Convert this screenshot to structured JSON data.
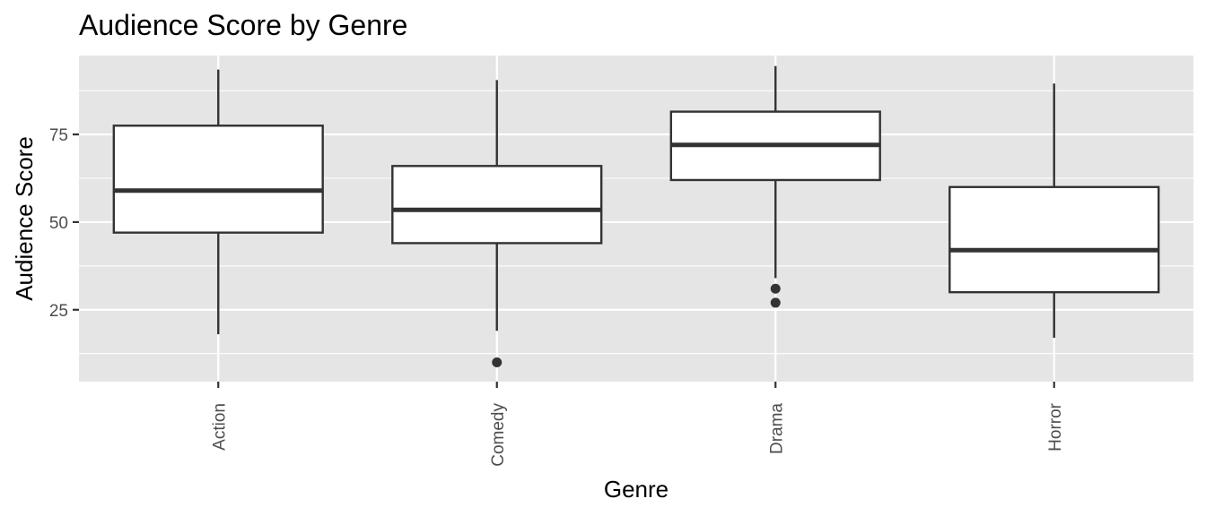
{
  "chart_data": {
    "type": "boxplot",
    "title": "Audience Score by Genre",
    "xlabel": "Genre",
    "ylabel": "Audience Score",
    "categories": [
      "Action",
      "Comedy",
      "Drama",
      "Horror"
    ],
    "boxes": [
      {
        "category": "Action",
        "whisker_low": 18,
        "q1": 47,
        "median": 59,
        "q3": 77.5,
        "whisker_high": 93.5,
        "outliers": []
      },
      {
        "category": "Comedy",
        "whisker_low": 19,
        "q1": 44,
        "median": 53.5,
        "q3": 66,
        "whisker_high": 90.5,
        "outliers": [
          10
        ]
      },
      {
        "category": "Drama",
        "whisker_low": 34,
        "q1": 62,
        "median": 72,
        "q3": 81.5,
        "whisker_high": 94.5,
        "outliers": [
          31,
          27
        ]
      },
      {
        "category": "Horror",
        "whisker_low": 17,
        "q1": 30,
        "median": 42,
        "q3": 60,
        "whisker_high": 89.5,
        "outliers": []
      }
    ],
    "y_ticks": [
      25,
      50,
      75
    ],
    "y_minor_ticks": [
      12.5,
      37.5,
      62.5,
      87.5
    ],
    "ylim": [
      4.5,
      97.5
    ],
    "x_tick_rotation": -90,
    "grid": true,
    "legend": "none",
    "colors": {
      "panel_background": "#e5e5e5",
      "grid_line": "#ffffff",
      "box_fill": "#ffffff",
      "box_stroke": "#333333",
      "tick_mark": "#333333",
      "tick_text": "#4d4d4d"
    }
  }
}
